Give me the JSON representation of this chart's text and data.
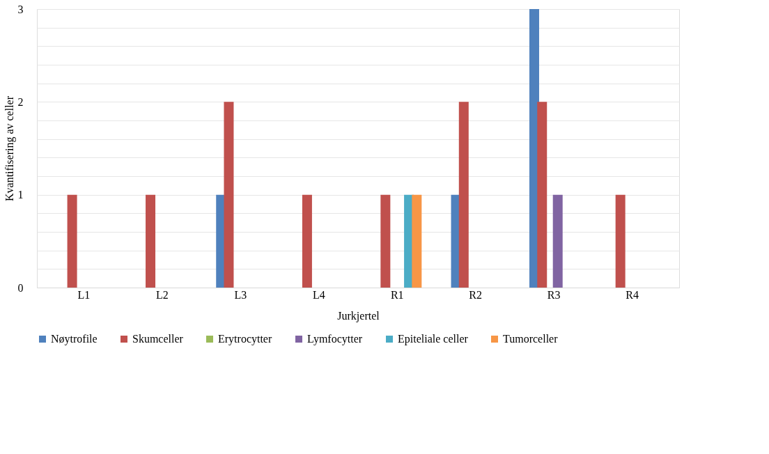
{
  "chart_data": {
    "type": "bar",
    "xlabel": "Jurkjertel",
    "ylabel": "Kvantifisering av celler",
    "categories": [
      "L1",
      "L2",
      "L3",
      "L4",
      "R1",
      "R2",
      "R3",
      "R4"
    ],
    "series": [
      {
        "name": "Nøytrofile",
        "color": "#4f81bd",
        "values": [
          0,
          0,
          1,
          0,
          0,
          1,
          3,
          0
        ]
      },
      {
        "name": "Skumceller",
        "color": "#c0504d",
        "values": [
          1,
          1,
          2,
          1,
          1,
          2,
          2,
          1
        ]
      },
      {
        "name": "Erytrocytter",
        "color": "#9bbb59",
        "values": [
          0,
          0,
          0,
          0,
          0,
          0,
          0,
          0
        ]
      },
      {
        "name": "Lymfocytter",
        "color": "#8064a2",
        "values": [
          0,
          0,
          0,
          0,
          0,
          0,
          1,
          0
        ]
      },
      {
        "name": "Epiteliale celler",
        "color": "#4bacc6",
        "values": [
          0,
          0,
          0,
          0,
          1,
          0,
          0,
          0
        ]
      },
      {
        "name": "Tumorceller",
        "color": "#f79646",
        "values": [
          0,
          0,
          0,
          0,
          1,
          0,
          0,
          0
        ]
      }
    ],
    "ylim": [
      0,
      3
    ],
    "yticks": [
      0,
      {
        "value": 0.2,
        "label": null
      },
      {
        "value": 0.4,
        "label": null
      },
      {
        "value": 0.6,
        "label": null
      },
      {
        "value": 0.8,
        "label": null
      },
      1,
      {
        "value": 1.2,
        "label": null
      },
      {
        "value": 1.4,
        "label": null
      },
      {
        "value": 1.6,
        "label": null
      },
      {
        "value": 1.8,
        "label": null
      },
      2,
      {
        "value": 2.2,
        "label": null
      },
      {
        "value": 2.4,
        "label": null
      },
      {
        "value": 2.6,
        "label": null
      },
      {
        "value": 2.8,
        "label": null
      },
      3
    ],
    "grid": "y",
    "legend": "bottom"
  }
}
